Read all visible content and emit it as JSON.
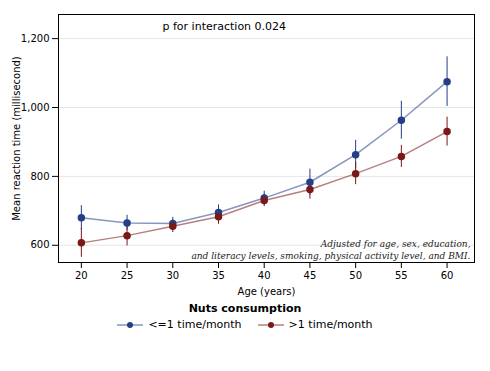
{
  "chart_data": {
    "type": "line",
    "x": [
      20,
      25,
      30,
      35,
      40,
      45,
      50,
      55,
      60
    ],
    "xlabel": "Age (years)",
    "ylabel": "Mean reaction time (millisecond)",
    "xlim": [
      17.5,
      63
    ],
    "xticks": [
      20,
      25,
      30,
      35,
      40,
      45,
      50,
      55,
      60
    ],
    "ylim": [
      550,
      1270
    ],
    "yticks": [
      600,
      800,
      1000,
      1200
    ],
    "grid": true,
    "marker": "circle",
    "legend": "bottom",
    "legend_title": "Nuts consumption",
    "annotations": [
      "p for interaction 0.024",
      "Adjusted for age, sex, education,",
      "and literacy levels, smoking, physical activity level, and BMI."
    ],
    "series": [
      {
        "name": "<=1 time/month",
        "color": "#253F87",
        "values": [
          680,
          665,
          663,
          695,
          737,
          783,
          863,
          963,
          1075
        ],
        "error_low": [
          35,
          22,
          18,
          22,
          20,
          38,
          42,
          55,
          72
        ],
        "error_high": [
          35,
          22,
          18,
          22,
          20,
          38,
          42,
          55,
          72
        ]
      },
      {
        "name": ">1 time/month",
        "color": "#7B1818",
        "values": [
          607,
          628,
          655,
          683,
          730,
          762,
          808,
          858,
          930
        ],
        "error_low": [
          42,
          30,
          18,
          22,
          18,
          28,
          32,
          32,
          42
        ],
        "error_high": [
          42,
          30,
          18,
          22,
          18,
          28,
          32,
          32,
          42
        ]
      }
    ]
  }
}
